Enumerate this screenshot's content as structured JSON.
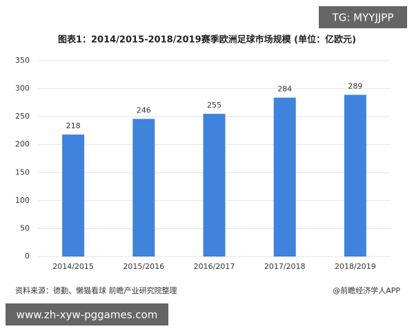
{
  "chart_data": {
    "type": "bar",
    "title": "图表1：2014/2015-2018/2019赛季欧洲足球市场规模 (单位：亿欧元)",
    "categories": [
      "2014/2015",
      "2015/2016",
      "2016/2017",
      "2017/2018",
      "2018/2019"
    ],
    "values": [
      218,
      246,
      255,
      284,
      289
    ],
    "color": "#3f83dc",
    "ylim": [
      0,
      350
    ],
    "yticks": [
      0,
      50,
      100,
      150,
      200,
      250,
      300,
      350
    ],
    "grid": true,
    "source": "资料来源：德勤、懒猫看球 前瞻产业研究院整理",
    "credit": "@前瞻经济学人APP"
  },
  "badge": "TG: MYYJJPP",
  "footer": "www.zh-xyw-pggames.com"
}
